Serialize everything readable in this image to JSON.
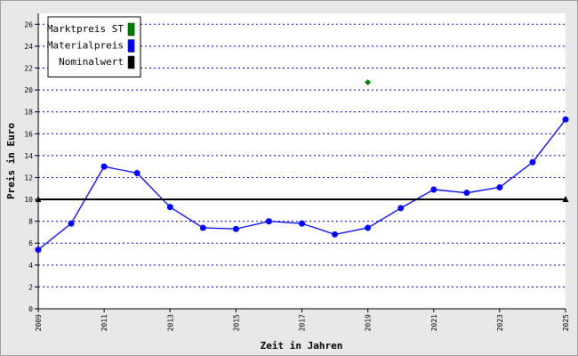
{
  "chart_data": {
    "type": "line",
    "xlabel": "Zeit in Jahren",
    "ylabel": "Preis in Euro",
    "xlim": [
      2009,
      2025
    ],
    "xticks": [
      2009,
      2011,
      2013,
      2015,
      2017,
      2019,
      2021,
      2023,
      2025
    ],
    "ylim": [
      0,
      27
    ],
    "yticks": [
      0,
      2,
      4,
      6,
      8,
      10,
      12,
      14,
      16,
      18,
      20,
      22,
      24,
      26
    ],
    "grid": true,
    "legend": "upper left",
    "series": [
      {
        "name": "Marktpreis ST",
        "color": "#008000",
        "marker": "diamond",
        "line": false,
        "x": [
          2019
        ],
        "values": [
          20.7
        ]
      },
      {
        "name": "Materialpreis",
        "color": "#0000ff",
        "marker": "circle",
        "line": true,
        "x": [
          2009,
          2010,
          2011,
          2012,
          2013,
          2014,
          2015,
          2016,
          2017,
          2018,
          2019,
          2020,
          2021,
          2022,
          2023,
          2024,
          2025
        ],
        "values": [
          5.4,
          7.8,
          13.0,
          12.4,
          9.3,
          7.4,
          7.3,
          8.0,
          7.8,
          6.8,
          7.4,
          9.2,
          10.9,
          10.6,
          11.1,
          13.4,
          17.3
        ]
      },
      {
        "name": "Nominalwert",
        "color": "#000000",
        "marker": "triangle",
        "line": true,
        "x": [
          2009,
          2025
        ],
        "values": [
          10,
          10
        ]
      }
    ]
  }
}
